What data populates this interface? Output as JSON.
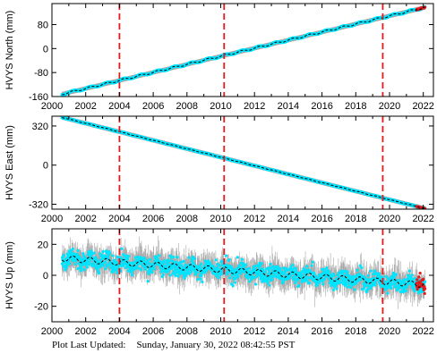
{
  "footer": {
    "label": "Plot Last Updated:",
    "value": "Sunday, January 30, 2022 08:42:55 PST"
  },
  "colors": {
    "daily": "#00e5ff",
    "errorbar": "#a8a8a8",
    "model": "#000000",
    "event_line": "#e41a1c",
    "recent": "#e41a1c",
    "frame": "#000000"
  },
  "chart_data": [
    {
      "type": "scatter",
      "ylabel": "HVYS North (mm)",
      "xlim": [
        2000,
        2022.6
      ],
      "ylim": [
        -160,
        150
      ],
      "xticks": [
        "2000",
        "2002",
        "2004",
        "2006",
        "2008",
        "2010",
        "2012",
        "2014",
        "2016",
        "2018",
        "2020",
        "2022"
      ],
      "yticks": [
        -160,
        -80,
        0,
        80
      ],
      "grid": false,
      "events": [
        2004.0,
        2010.2,
        2019.6
      ],
      "trend": {
        "start": [
          2000.6,
          -152
        ],
        "end": [
          2022.1,
          137
        ],
        "seasonal_amplitude": 3
      },
      "series": [
        {
          "name": "",
          "kind": "daily",
          "x": [
            2000.6,
            2022.1
          ],
          "y": [
            -152,
            137
          ]
        }
      ]
    },
    {
      "type": "scatter",
      "ylabel": "HVYS East (mm)",
      "xlim": [
        2000,
        2022.6
      ],
      "ylim": [
        -360,
        400
      ],
      "xticks": [
        "2000",
        "2002",
        "2004",
        "2006",
        "2008",
        "2010",
        "2012",
        "2014",
        "2016",
        "2018",
        "2020",
        "2022"
      ],
      "yticks": [
        -320,
        0,
        320
      ],
      "grid": false,
      "events": [
        2004.0,
        2010.2,
        2019.6
      ],
      "trend": {
        "start": [
          2000.6,
          390
        ],
        "end": [
          2022.1,
          -355
        ],
        "seasonal_amplitude": 2
      },
      "series": [
        {
          "name": "",
          "kind": "daily",
          "x": [
            2000.6,
            2022.1
          ],
          "y": [
            390,
            -355
          ]
        }
      ]
    },
    {
      "type": "scatter",
      "ylabel": "HVYS Up (mm)",
      "xlim": [
        2000,
        2022.6
      ],
      "ylim": [
        -30,
        30
      ],
      "xticks": [
        "2000",
        "2002",
        "2004",
        "2006",
        "2008",
        "2010",
        "2012",
        "2014",
        "2016",
        "2018",
        "2020",
        "2022"
      ],
      "yticks": [
        -20,
        0,
        20
      ],
      "grid": false,
      "events": [
        2004.0,
        2010.2,
        2019.6
      ],
      "trend": {
        "start": [
          2000.6,
          11
        ],
        "end": [
          2022.1,
          -6
        ],
        "seasonal_amplitude": 2
      },
      "series": [
        {
          "name": "",
          "kind": "daily",
          "x": [
            2000.6,
            2022.1
          ],
          "y": [
            11,
            -6
          ],
          "scatter": 5,
          "errorbar": 6
        }
      ]
    }
  ]
}
